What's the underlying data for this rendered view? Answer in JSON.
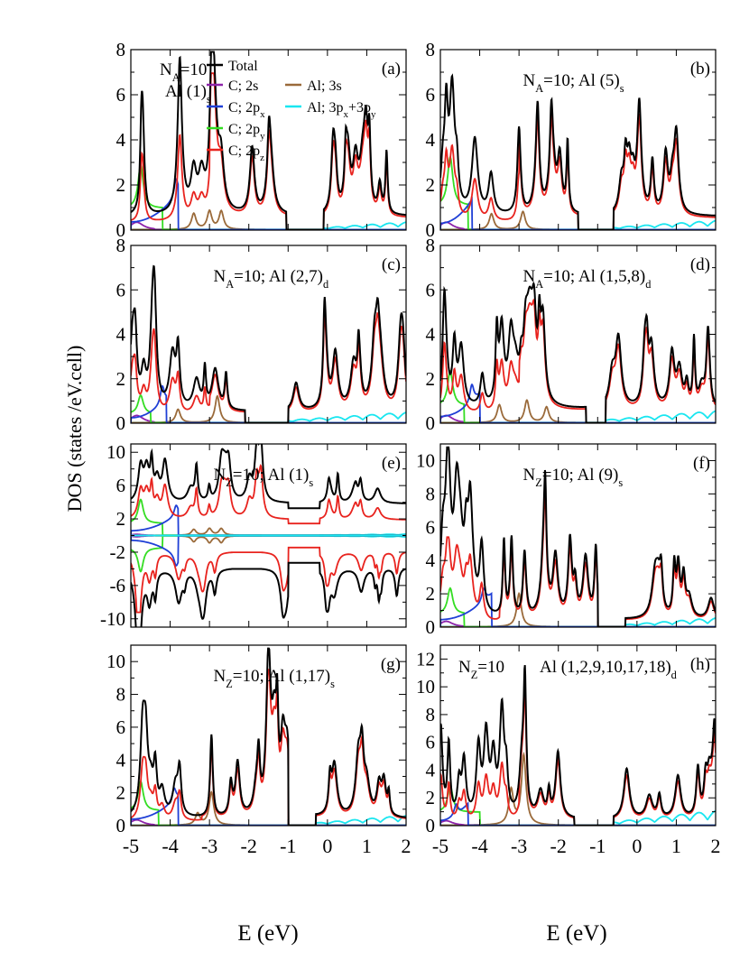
{
  "figure": {
    "ylabel": "DOS (states /eV.cell)",
    "xlabel": "E (eV)"
  },
  "legend": [
    {
      "label": "Total",
      "color": "#000000"
    },
    {
      "label": "C; 2s",
      "color": "#8e24aa"
    },
    {
      "label": "C; 2p",
      "sub": "x",
      "color": "#1f3fd6"
    },
    {
      "label": "C; 2p",
      "sub": "y",
      "color": "#33dd22"
    },
    {
      "label": "C; 2p",
      "sub": "z",
      "color": "#e8231e"
    },
    {
      "label": "Al; 3s",
      "color": "#9a6a3a"
    },
    {
      "label": "Al; 3p",
      "sub": "x",
      "mid": "+3p",
      "sub2": "y",
      "color": "#19e6f0"
    }
  ],
  "chart_data": [
    {
      "type": "line",
      "panel": "(a)",
      "label": {
        "pre": "N",
        "sub": "A",
        "text": "=10",
        "line2pre": "Al (1)",
        "line2sub": "s"
      },
      "xlim": [
        -5,
        2
      ],
      "ylim": [
        0,
        8
      ],
      "yticks": [
        0,
        2,
        4,
        6,
        8
      ],
      "xticks": [
        -5,
        -4,
        -3,
        -2,
        -1,
        0,
        1,
        2
      ]
    },
    {
      "type": "line",
      "panel": "(b)",
      "label": {
        "pre": "N",
        "sub": "A",
        "text": "=10; Al (5)",
        "post": "",
        "sub2": "s"
      },
      "xlim": [
        -5,
        2
      ],
      "ylim": [
        0,
        8
      ],
      "yticks": [
        0,
        2,
        4,
        6,
        8
      ],
      "xticks": [
        -5,
        -4,
        -3,
        -2,
        -1,
        0,
        1,
        2
      ]
    },
    {
      "type": "line",
      "panel": "(c)",
      "label": {
        "pre": "N",
        "sub": "A",
        "text": "=10; Al (2,7)",
        "sub2": "d"
      },
      "xlim": [
        -5,
        2
      ],
      "ylim": [
        0,
        8
      ],
      "yticks": [
        0,
        2,
        4,
        6,
        8
      ],
      "xticks": [
        -5,
        -4,
        -3,
        -2,
        -1,
        0,
        1,
        2
      ]
    },
    {
      "type": "line",
      "panel": "(d)",
      "label": {
        "pre": "N",
        "sub": "A",
        "text": "=10; Al (1,5,8)",
        "sub2": "d"
      },
      "xlim": [
        -5,
        2
      ],
      "ylim": [
        0,
        8
      ],
      "yticks": [
        0,
        2,
        4,
        6,
        8
      ],
      "xticks": [
        -5,
        -4,
        -3,
        -2,
        -1,
        0,
        1,
        2
      ]
    },
    {
      "type": "line",
      "panel": "(e)",
      "label": {
        "pre": "N",
        "sub": "Z",
        "text": "=10; Al (1)",
        "sub2": "s"
      },
      "xlim": [
        -5,
        2
      ],
      "ylim": [
        -11,
        11
      ],
      "yticks": [
        -10,
        -6,
        -2,
        2,
        6,
        10
      ],
      "xticks": [
        -5,
        -4,
        -3,
        -2,
        -1,
        0,
        1,
        2
      ]
    },
    {
      "type": "line",
      "panel": "(f)",
      "label": {
        "pre": "N",
        "sub": "Z",
        "text": "=10; Al (9)",
        "sub2": "s"
      },
      "xlim": [
        -5,
        2
      ],
      "ylim": [
        0,
        11
      ],
      "yticks": [
        0,
        2,
        4,
        6,
        8,
        10
      ],
      "xticks": [
        -5,
        -4,
        -3,
        -2,
        -1,
        0,
        1,
        2
      ]
    },
    {
      "type": "line",
      "panel": "(g)",
      "label": {
        "pre": "N",
        "sub": "Z",
        "text": "=10; Al (1,17)",
        "sub2": "s"
      },
      "xlim": [
        -5,
        2
      ],
      "ylim": [
        0,
        11
      ],
      "yticks": [
        0,
        2,
        4,
        6,
        8,
        10
      ],
      "xticks": [
        -5,
        -4,
        -3,
        -2,
        -1,
        0,
        1,
        2
      ]
    },
    {
      "type": "line",
      "panel": "(h)",
      "label": {
        "pre": "N",
        "sub": "Z",
        "text": "=10",
        "extra": "Al (1,2,9,10,17,18)",
        "sub2": "d"
      },
      "xlim": [
        -5,
        2
      ],
      "ylim": [
        0,
        13
      ],
      "yticks": [
        0,
        2,
        4,
        6,
        8,
        10,
        12
      ],
      "xticks": [
        -5,
        -4,
        -3,
        -2,
        -1,
        0,
        1,
        2
      ]
    }
  ]
}
